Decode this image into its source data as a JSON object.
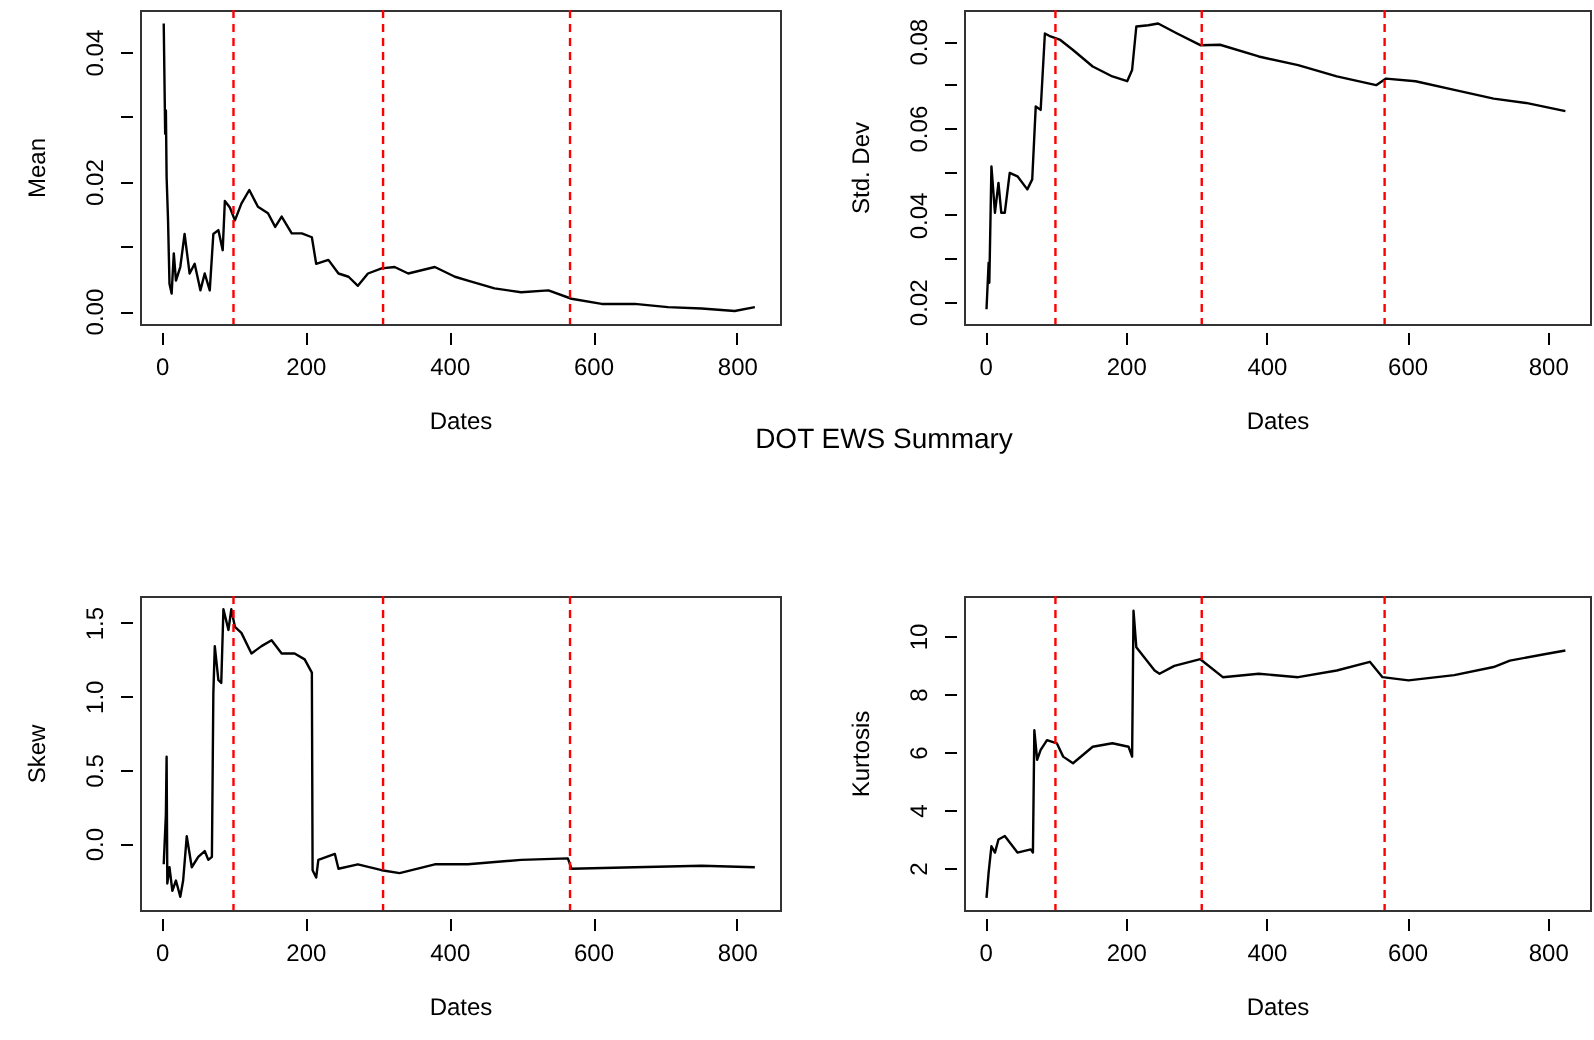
{
  "chart_data": [
    {
      "type": "line",
      "title": "DOT EWS Summary",
      "xlabel": "Dates",
      "ylabel": "Mean",
      "xlim": [
        -30,
        860
      ],
      "xticks": [
        0,
        200,
        400,
        600,
        800
      ],
      "ylim": [
        -0.002,
        0.0465
      ],
      "yticks": [
        {
          "value": 0,
          "label": "0.00"
        },
        {
          "value": 0.01,
          "label": null
        },
        {
          "value": 0.02,
          "label": "0.02"
        },
        {
          "value": 0.03,
          "label": null
        },
        {
          "value": 0.04,
          "label": "0.04"
        }
      ],
      "x": [
        3,
        5,
        6,
        7,
        9,
        11,
        14,
        17,
        20,
        26,
        32,
        39,
        46,
        54,
        60,
        67,
        72,
        79,
        85,
        88,
        95,
        102,
        111,
        122,
        134,
        148,
        158,
        167,
        181,
        195,
        209,
        215,
        232,
        246,
        260,
        273,
        287,
        306,
        324,
        343,
        380,
        408,
        426,
        463,
        500,
        538,
        570,
        612,
        658,
        704,
        751,
        797,
        825
      ],
      "series": [
        {
          "color": "#000000",
          "values": [
            0.0444,
            0.0274,
            0.031,
            0.0207,
            0.014,
            0.0042,
            0.0027,
            0.0089,
            0.0047,
            0.0068,
            0.0119,
            0.0058,
            0.0073,
            0.0032,
            0.0058,
            0.0032,
            0.0119,
            0.0125,
            0.0094,
            0.017,
            0.016,
            0.014,
            0.0166,
            0.0187,
            0.0161,
            0.0151,
            0.013,
            0.0146,
            0.012,
            0.012,
            0.0114,
            0.0073,
            0.0079,
            0.0058,
            0.0053,
            0.0039,
            0.0058,
            0.0066,
            0.0068,
            0.0058,
            0.0068,
            0.0053,
            0.0047,
            0.0035,
            0.0029,
            0.0032,
            0.0019,
            0.0011,
            0.0011,
            0.0006,
            0.0004,
            0.0,
            0.0006
          ]
        }
      ],
      "ref_lines": [
        {
          "axis": "x",
          "value": 100,
          "color": "#ff0000",
          "line_style": "dashed"
        },
        {
          "axis": "x",
          "value": 308,
          "color": "#ff0000",
          "line_style": "dashed"
        },
        {
          "axis": "x",
          "value": 568,
          "color": "#ff0000",
          "line_style": "dashed"
        }
      ]
    },
    {
      "type": "line",
      "xlabel": "Dates",
      "ylabel": "Std. Dev",
      "xlim": [
        -30,
        860
      ],
      "xticks": [
        0,
        200,
        400,
        600,
        800
      ],
      "ylim": [
        0.0149,
        0.0872
      ],
      "yticks": [
        {
          "value": 0.02,
          "label": "0.02"
        },
        {
          "value": 0.03,
          "label": null
        },
        {
          "value": 0.04,
          "label": "0.04"
        },
        {
          "value": 0.05,
          "label": null
        },
        {
          "value": 0.06,
          "label": "0.06"
        },
        {
          "value": 0.07,
          "label": null
        },
        {
          "value": 0.08,
          "label": "0.08"
        }
      ],
      "x": [
        2,
        5,
        6,
        9,
        14,
        19,
        23,
        28,
        35,
        46,
        60,
        67,
        72,
        79,
        85,
        93,
        107,
        125,
        153,
        181,
        202,
        209,
        215,
        232,
        246,
        273,
        306,
        334,
        389,
        445,
        500,
        556,
        570,
        612,
        667,
        723,
        769,
        825
      ],
      "series": [
        {
          "color": "#000000",
          "values": [
            0.0183,
            0.029,
            0.0244,
            0.0512,
            0.0405,
            0.0474,
            0.0405,
            0.0405,
            0.0497,
            0.0489,
            0.0459,
            0.0482,
            0.065,
            0.0642,
            0.0818,
            0.0811,
            0.0803,
            0.078,
            0.0742,
            0.0719,
            0.0708,
            0.0734,
            0.0834,
            0.0837,
            0.0841,
            0.0818,
            0.0791,
            0.0792,
            0.0765,
            0.0745,
            0.0719,
            0.0699,
            0.0714,
            0.0708,
            0.0688,
            0.0668,
            0.0658,
            0.0639
          ]
        }
      ],
      "ref_lines": [
        {
          "axis": "x",
          "value": 100,
          "color": "#ff0000",
          "line_style": "dashed"
        },
        {
          "axis": "x",
          "value": 308,
          "color": "#ff0000",
          "line_style": "dashed"
        },
        {
          "axis": "x",
          "value": 568,
          "color": "#ff0000",
          "line_style": "dashed"
        }
      ]
    },
    {
      "type": "line",
      "xlabel": "Dates",
      "ylabel": "Skew",
      "xlim": [
        -30,
        860
      ],
      "xticks": [
        0,
        200,
        400,
        600,
        800
      ],
      "ylim": [
        -0.45,
        1.68
      ],
      "yticks": [
        {
          "value": 0,
          "label": "0.0"
        },
        0.5,
        {
          "value": 1,
          "label": "1.0"
        },
        1.5
      ],
      "x": [
        3,
        6,
        7,
        8,
        11,
        15,
        20,
        26,
        30,
        35,
        42,
        51,
        60,
        65,
        70,
        72,
        74,
        79,
        83,
        86,
        93,
        97,
        102,
        111,
        125,
        139,
        153,
        167,
        185,
        199,
        209,
        210,
        215,
        218,
        241,
        246,
        273,
        306,
        331,
        380,
        426,
        500,
        565,
        570,
        658,
        751,
        825
      ],
      "series": [
        {
          "color": "#000000",
          "values": [
            -0.14,
            0.2,
            0.59,
            -0.27,
            -0.16,
            -0.32,
            -0.25,
            -0.36,
            -0.25,
            0.05,
            -0.16,
            -0.09,
            -0.05,
            -0.11,
            -0.09,
            1.02,
            1.34,
            1.11,
            1.09,
            1.59,
            1.45,
            1.59,
            1.47,
            1.43,
            1.29,
            1.34,
            1.38,
            1.29,
            1.29,
            1.25,
            1.16,
            -0.18,
            -0.23,
            -0.11,
            -0.07,
            -0.17,
            -0.14,
            -0.18,
            -0.2,
            -0.14,
            -0.14,
            -0.11,
            -0.1,
            -0.17,
            -0.16,
            -0.15,
            -0.16
          ]
        }
      ],
      "ref_lines": [
        {
          "axis": "x",
          "value": 100,
          "color": "#ff0000",
          "line_style": "dashed"
        },
        {
          "axis": "x",
          "value": 308,
          "color": "#ff0000",
          "line_style": "dashed"
        },
        {
          "axis": "x",
          "value": 568,
          "color": "#ff0000",
          "line_style": "dashed"
        }
      ]
    },
    {
      "type": "line",
      "xlabel": "Dates",
      "ylabel": "Kurtosis",
      "xlim": [
        -30,
        860
      ],
      "xticks": [
        0,
        200,
        400,
        600,
        800
      ],
      "ylim": [
        0.55,
        11.38
      ],
      "yticks": [
        2,
        4,
        6,
        8,
        10
      ],
      "x": [
        2,
        5,
        9,
        14,
        19,
        28,
        46,
        65,
        68,
        70,
        74,
        79,
        88,
        102,
        111,
        125,
        153,
        181,
        204,
        209,
        211,
        215,
        241,
        248,
        269,
        306,
        338,
        389,
        445,
        500,
        547,
        565,
        602,
        667,
        723,
        746,
        797,
        825
      ],
      "series": [
        {
          "color": "#000000",
          "values": [
            0.97,
            1.84,
            2.75,
            2.53,
            2.98,
            3.1,
            2.53,
            2.64,
            2.53,
            6.75,
            5.73,
            6.07,
            6.41,
            6.3,
            5.84,
            5.61,
            6.18,
            6.3,
            6.18,
            5.84,
            10.87,
            9.61,
            8.81,
            8.7,
            8.97,
            9.2,
            8.58,
            8.7,
            8.58,
            8.81,
            9.11,
            8.58,
            8.47,
            8.65,
            8.93,
            9.15,
            9.38,
            9.5
          ]
        }
      ],
      "ref_lines": [
        {
          "axis": "x",
          "value": 100,
          "color": "#ff0000",
          "line_style": "dashed"
        },
        {
          "axis": "x",
          "value": 308,
          "color": "#ff0000",
          "line_style": "dashed"
        },
        {
          "axis": "x",
          "value": 568,
          "color": "#ff0000",
          "line_style": "dashed"
        }
      ]
    }
  ]
}
